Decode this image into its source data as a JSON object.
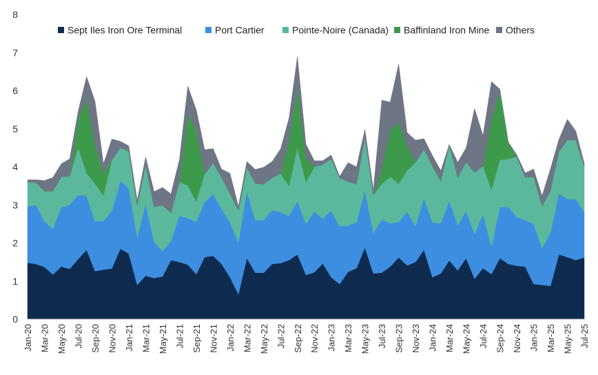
{
  "chart_data": {
    "type": "area",
    "stacked": true,
    "title": "",
    "xlabel": "",
    "ylabel": "",
    "ylim": [
      0,
      8
    ],
    "yticks": [
      "0",
      "1",
      "2",
      "3",
      "4",
      "5",
      "6",
      "7",
      "8"
    ],
    "grid": false,
    "legend_position": "top",
    "x": [
      "Jan-20",
      "Feb-20",
      "Mar-20",
      "Apr-20",
      "May-20",
      "Jun-20",
      "Jul-20",
      "Aug-20",
      "Sep-20",
      "Oct-20",
      "Nov-20",
      "Dec-20",
      "Jan-21",
      "Feb-21",
      "Mar-21",
      "Apr-21",
      "May-21",
      "Jun-21",
      "Jul-21",
      "Aug-21",
      "Sep-21",
      "Oct-21",
      "Nov-21",
      "Dec-21",
      "Jan-22",
      "Feb-22",
      "Mar-22",
      "Apr-22",
      "May-22",
      "Jun-22",
      "Jul-22",
      "Aug-22",
      "Sep-22",
      "Oct-22",
      "Nov-22",
      "Dec-22",
      "Jan-23",
      "Feb-23",
      "Mar-23",
      "Apr-23",
      "May-23",
      "Jun-23",
      "Jul-23",
      "Aug-23",
      "Sep-23",
      "Oct-23",
      "Nov-23",
      "Dec-23",
      "Jan-24",
      "Feb-24",
      "Mar-24",
      "Apr-24",
      "May-24",
      "Jun-24",
      "Jul-24",
      "Aug-24",
      "Sep-24",
      "Oct-24",
      "Nov-24",
      "Dec-24",
      "Jan-25",
      "Feb-25",
      "Mar-25",
      "Apr-25",
      "May-25",
      "Jun-25",
      "Jul-25"
    ],
    "xtick_labels": [
      "Jan-20",
      "Mar-20",
      "May-20",
      "Jul-20",
      "Sep-20",
      "Nov-20",
      "Jan-21",
      "Mar-21",
      "May-21",
      "Jul-21",
      "Sep-21",
      "Nov-21",
      "Jan-22",
      "Mar-22",
      "May-22",
      "Jul-22",
      "Sep-22",
      "Nov-22",
      "Jan-23",
      "Mar-23",
      "May-23",
      "Jul-23",
      "Sep-23",
      "Nov-23",
      "Jan-24",
      "Mar-24",
      "May-24",
      "Jul-24",
      "Sep-24",
      "Nov-24",
      "Jan-25",
      "Mar-25",
      "May-25",
      "Jul-25"
    ],
    "series": [
      {
        "name": "Sept Iles Iron Ore Terminal",
        "color": "#0e2a4f",
        "values": [
          1.48,
          1.45,
          1.37,
          1.17,
          1.38,
          1.32,
          1.58,
          1.82,
          1.26,
          1.3,
          1.33,
          1.85,
          1.72,
          0.9,
          1.14,
          1.08,
          1.12,
          1.55,
          1.5,
          1.43,
          1.18,
          1.63,
          1.66,
          1.45,
          1.1,
          0.65,
          1.6,
          1.22,
          1.22,
          1.45,
          1.47,
          1.55,
          1.7,
          1.16,
          1.23,
          1.46,
          1.1,
          0.92,
          1.24,
          1.34,
          1.88,
          1.2,
          1.22,
          1.38,
          1.62,
          1.41,
          1.5,
          1.82,
          1.1,
          1.2,
          1.54,
          1.28,
          1.6,
          1.06,
          1.34,
          1.18,
          1.6,
          1.45,
          1.4,
          1.38,
          0.92,
          0.9,
          0.87,
          1.7,
          1.63,
          1.55,
          1.62
        ]
      },
      {
        "name": "Port Cartier",
        "color": "#3d8ee0",
        "values": [
          1.48,
          1.55,
          1.2,
          1.2,
          1.55,
          1.68,
          1.68,
          1.42,
          1.31,
          1.28,
          1.52,
          1.78,
          1.72,
          1.25,
          1.88,
          0.95,
          0.66,
          0.5,
          1.22,
          1.22,
          1.37,
          1.45,
          1.62,
          1.44,
          1.44,
          1.36,
          1.76,
          1.38,
          1.38,
          1.41,
          1.34,
          1.16,
          1.4,
          1.34,
          1.6,
          1.18,
          1.75,
          1.52,
          1.22,
          1.2,
          1.5,
          1.06,
          1.4,
          1.14,
          0.93,
          1.41,
          0.94,
          1.36,
          1.44,
          1.32,
          1.56,
          1.18,
          1.24,
          1.18,
          1.42,
          0.72,
          1.34,
          1.5,
          1.28,
          1.22,
          1.58,
          0.96,
          1.4,
          1.6,
          1.52,
          1.6,
          1.19
        ]
      },
      {
        "name": "Pointe-Noire (Canada)",
        "color": "#5cb89d",
        "values": [
          0.64,
          0.58,
          0.79,
          0.99,
          0.81,
          0.75,
          1.24,
          0.6,
          0.98,
          0.66,
          1.33,
          0.87,
          0.97,
          0.85,
          1.02,
          0.92,
          1.21,
          0.74,
          0.88,
          0.86,
          0.54,
          0.73,
          0.82,
          0.83,
          0.76,
          0.85,
          0.63,
          0.96,
          0.94,
          0.85,
          1.01,
          0.79,
          1.4,
          1.1,
          1.17,
          1.42,
          1.36,
          1.26,
          1.15,
          1.0,
          1.4,
          1.0,
          0.93,
          1.22,
          1.0,
          1.08,
          1.68,
          1.28,
          1.48,
          1.1,
          1.47,
          1.26,
          1.28,
          1.61,
          1.26,
          1.5,
          1.24,
          1.26,
          1.58,
          1.12,
          1.24,
          1.1,
          1.1,
          1.1,
          1.55,
          1.55,
          1.19
        ]
      },
      {
        "name": "Baffinland Iron Mine",
        "color": "#3e9a4b",
        "values": [
          0,
          0,
          0,
          0,
          0,
          0,
          0.78,
          1.9,
          1.04,
          0.6,
          0,
          0,
          0,
          0,
          0,
          0,
          0,
          0,
          0,
          1.9,
          1.85,
          0,
          0,
          0,
          0,
          0,
          0,
          0,
          0,
          0,
          0,
          1.18,
          1.6,
          0.62,
          0,
          0,
          0,
          0,
          0,
          0,
          0,
          0,
          0.4,
          1.24,
          1.6,
          0.65,
          0,
          0,
          0,
          0,
          0,
          0,
          0,
          0,
          0,
          1.82,
          1.82,
          0.42,
          0,
          0,
          0,
          0,
          0,
          0,
          0,
          0,
          0
        ]
      },
      {
        "name": "Others",
        "color": "#6e7685",
        "values": [
          0.06,
          0.08,
          0.28,
          0.36,
          0.34,
          0.46,
          0.18,
          0.63,
          1.13,
          0.24,
          0.55,
          0.17,
          0.14,
          0.12,
          0.22,
          0.4,
          0.47,
          0.5,
          0.58,
          0.71,
          0.56,
          0.64,
          0.38,
          0.22,
          0.53,
          0.1,
          0.15,
          0.37,
          0.45,
          0.43,
          0.65,
          0.6,
          0.8,
          0.38,
          0.16,
          0.1,
          0.1,
          0.05,
          0.5,
          0.46,
          0.2,
          0.14,
          1.8,
          0.72,
          1.55,
          0.35,
          0.58,
          0.28,
          0.28,
          0.28,
          0.02,
          0.4,
          0.38,
          1.68,
          0.8,
          1.02,
          0.04,
          0.02,
          0.06,
          0.12,
          0.2,
          0.28,
          0.58,
          0.32,
          0.55,
          0.24,
          0.1
        ]
      }
    ]
  }
}
